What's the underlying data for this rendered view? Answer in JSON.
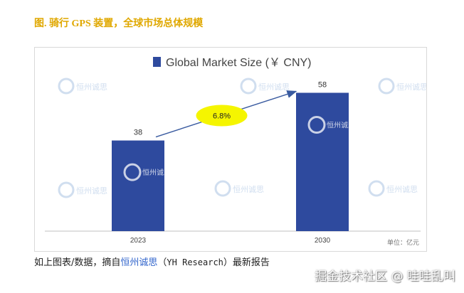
{
  "figure_title": "图. 骑行 GPS 装置，全球市场总体规模",
  "chart_data": {
    "type": "bar",
    "title": "Global Market Size (￥ CNY)",
    "categories": [
      "2023",
      "2030"
    ],
    "series": [
      {
        "name": "Global Market Size (￥ CNY)",
        "values": [
          38,
          58
        ],
        "color": "#2e4a9e"
      }
    ],
    "data_labels": [
      "38",
      "58"
    ],
    "annotation": {
      "text": "6.8%",
      "color": "#f5f500"
    },
    "unit_note": "单位：亿元",
    "ylim": [
      0,
      65
    ],
    "grid": false,
    "legend": "top"
  },
  "watermark_text": "恒州诚思",
  "caption": {
    "prefix": "如上图表/数据，摘自",
    "source_link": "恒州诚思",
    "paren_open": "（",
    "source_en": "YH Research",
    "paren_close": "）",
    "suffix": "最新报告"
  },
  "footer_watermark": "掘金技术社区 @ 哇哇乱叫"
}
